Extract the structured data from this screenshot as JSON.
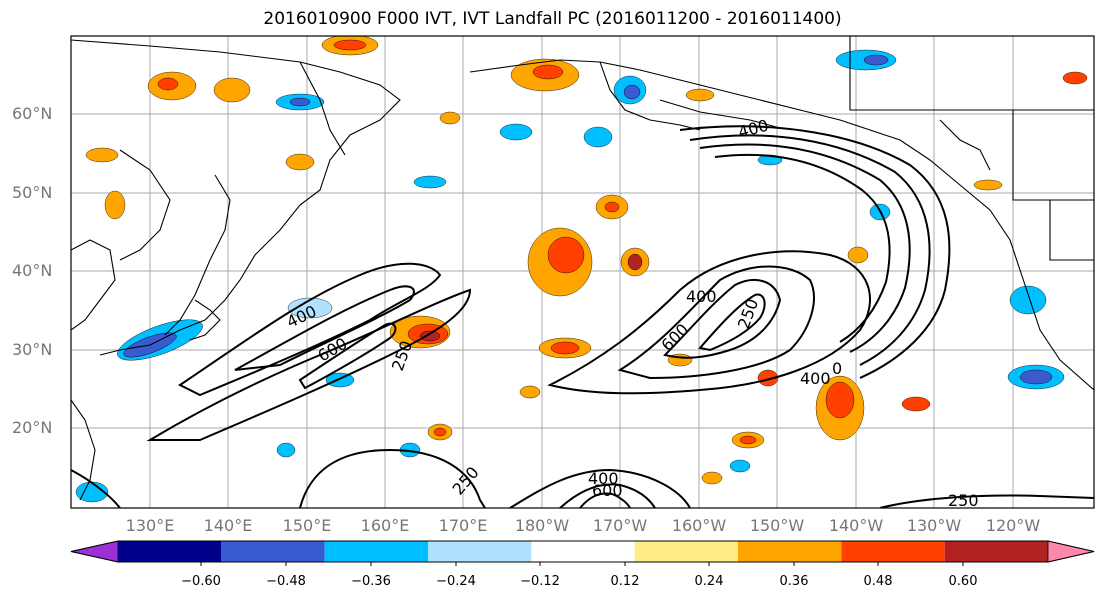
{
  "title": "2016010900 F000 IVT, IVT Landfall PC (2016011200 - 2016011400)",
  "lat_labels": [
    "60°N",
    "50°N",
    "40°N",
    "30°N",
    "20°N"
  ],
  "lon_labels": [
    "130°E",
    "140°E",
    "150°E",
    "160°E",
    "170°E",
    "180°W",
    "170°W",
    "160°W",
    "150°W",
    "140°W",
    "130°W",
    "120°W"
  ],
  "contour_labels": [
    "400",
    "600",
    "250",
    "400",
    "600",
    "400",
    "250",
    "250",
    "400",
    "600",
    "250",
    "400",
    "0"
  ],
  "colorbar": {
    "ticks": [
      "−0.60",
      "−0.48",
      "−0.36",
      "−0.24",
      "−0.12",
      "0.12",
      "0.24",
      "0.36",
      "0.48",
      "0.60"
    ],
    "colors": [
      "#9b30d6",
      "#00008b",
      "#3a5bd0",
      "#00bfff",
      "#b0e2ff",
      "#ffffff",
      "#ffee88",
      "#ffa500",
      "#ff4000",
      "#b22222",
      "#ff88aa"
    ]
  },
  "colors": {
    "land_lines": "#000000",
    "grid": "#aaaaaa",
    "axis_labels": "#777777"
  }
}
